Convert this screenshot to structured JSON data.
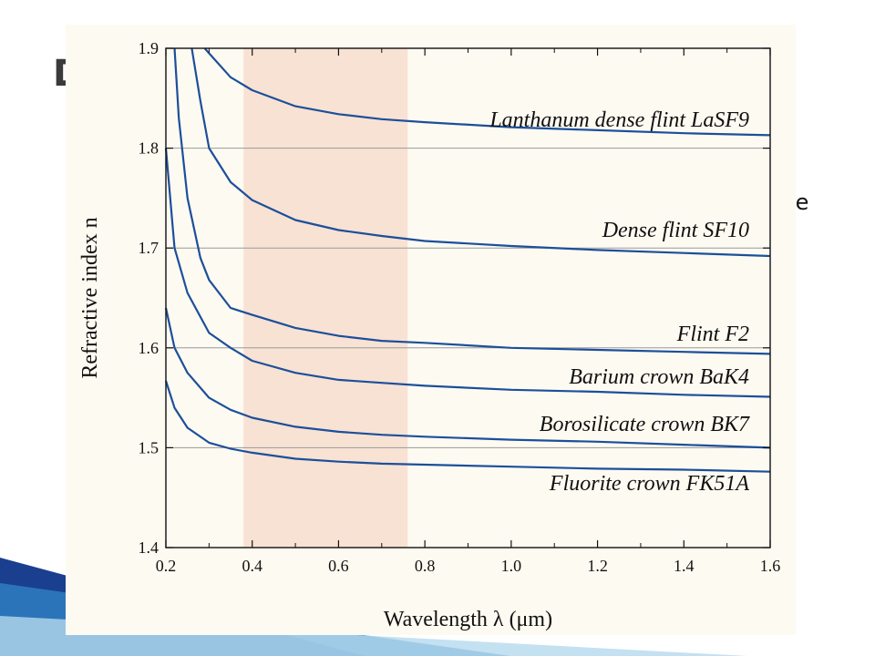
{
  "slide": {
    "title_fragment": "D",
    "body_fragment": "le"
  },
  "chart_data": {
    "type": "line",
    "xlabel": "Wavelength λ (μm)",
    "ylabel": "Refractive index n",
    "xlim": [
      0.2,
      1.6
    ],
    "ylim": [
      1.4,
      1.9
    ],
    "xticks": [
      "0.2",
      "0.4",
      "0.6",
      "0.8",
      "1.0",
      "1.2",
      "1.4",
      "1.6"
    ],
    "yticks": [
      "1.4",
      "1.5",
      "1.6",
      "1.7",
      "1.8",
      "1.9"
    ],
    "grid": "horizontal",
    "visible_band": {
      "x_start": 0.38,
      "x_end": 0.76,
      "color": "#f8e2d3"
    },
    "line_color": "#1c4f9b",
    "series": [
      {
        "name": "Lanthanum dense flint LaSF9",
        "x": [
          0.29,
          0.3,
          0.35,
          0.4,
          0.5,
          0.6,
          0.7,
          0.8,
          1.0,
          1.2,
          1.4,
          1.6
        ],
        "values": [
          1.9,
          1.895,
          1.871,
          1.858,
          1.842,
          1.834,
          1.829,
          1.826,
          1.821,
          1.818,
          1.815,
          1.813
        ]
      },
      {
        "name": "Dense flint SF10",
        "x": [
          0.26,
          0.28,
          0.3,
          0.35,
          0.4,
          0.5,
          0.6,
          0.7,
          0.8,
          1.0,
          1.2,
          1.4,
          1.6
        ],
        "values": [
          1.9,
          1.847,
          1.8,
          1.766,
          1.748,
          1.728,
          1.718,
          1.712,
          1.707,
          1.702,
          1.698,
          1.695,
          1.692
        ]
      },
      {
        "name": "Flint F2",
        "x": [
          0.22,
          0.23,
          0.25,
          0.28,
          0.3,
          0.35,
          0.4,
          0.5,
          0.6,
          0.7,
          0.8,
          1.0,
          1.2,
          1.4,
          1.6
        ],
        "values": [
          1.9,
          1.83,
          1.75,
          1.69,
          1.668,
          1.64,
          1.633,
          1.62,
          1.612,
          1.607,
          1.605,
          1.6,
          1.598,
          1.596,
          1.594
        ]
      },
      {
        "name": "Barium crown BaK4",
        "x": [
          0.2,
          0.22,
          0.25,
          0.3,
          0.35,
          0.4,
          0.5,
          0.6,
          0.7,
          0.8,
          1.0,
          1.2,
          1.4,
          1.6
        ],
        "values": [
          1.8,
          1.7,
          1.655,
          1.615,
          1.6,
          1.587,
          1.575,
          1.568,
          1.565,
          1.562,
          1.558,
          1.556,
          1.553,
          1.551
        ]
      },
      {
        "name": "Borosilicate crown BK7",
        "x": [
          0.2,
          0.22,
          0.25,
          0.3,
          0.35,
          0.4,
          0.5,
          0.6,
          0.7,
          0.8,
          1.0,
          1.2,
          1.4,
          1.6
        ],
        "values": [
          1.64,
          1.6,
          1.575,
          1.55,
          1.538,
          1.53,
          1.521,
          1.516,
          1.513,
          1.511,
          1.508,
          1.506,
          1.503,
          1.5
        ]
      },
      {
        "name": "Fluorite crown FK51A",
        "x": [
          0.2,
          0.22,
          0.25,
          0.3,
          0.35,
          0.4,
          0.5,
          0.6,
          0.7,
          0.8,
          1.0,
          1.2,
          1.4,
          1.6
        ],
        "values": [
          1.567,
          1.54,
          1.52,
          1.505,
          1.499,
          1.495,
          1.489,
          1.486,
          1.484,
          1.483,
          1.481,
          1.479,
          1.478,
          1.476
        ]
      }
    ]
  }
}
